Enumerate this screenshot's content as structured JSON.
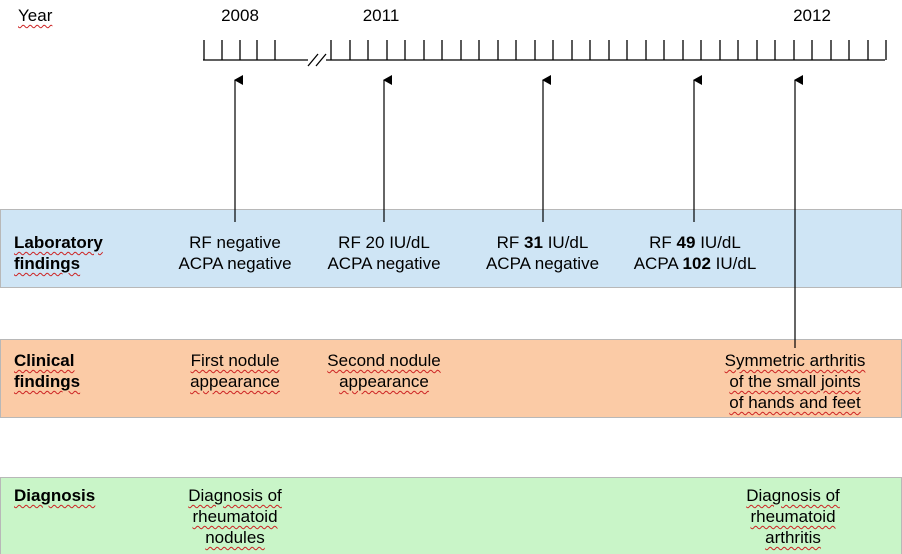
{
  "axis": {
    "heading": "Year",
    "years": [
      "2008",
      "2011",
      "2012"
    ]
  },
  "rows": {
    "laboratory": {
      "label": [
        "Laboratory",
        "findings"
      ],
      "color": "#cfe5f5",
      "events": [
        {
          "line1": "RF negative",
          "line2": "ACPA negative"
        },
        {
          "line1": "RF 20 IU/dL",
          "line2": "ACPA negative"
        },
        {
          "line1_pre": "RF ",
          "line1_bold": "31",
          "line1_post": " IU/dL",
          "line2": "ACPA negative"
        },
        {
          "line1_pre": "RF ",
          "line1_bold": "49",
          "line1_post": " IU/dL",
          "line2_pre": "ACPA ",
          "line2_bold": "102",
          "line2_post": " IU/dL"
        }
      ]
    },
    "clinical": {
      "label": [
        "Clinical",
        "findings"
      ],
      "color": "#fbcba6",
      "events": [
        {
          "lines": [
            "First nodule",
            "appearance"
          ]
        },
        {
          "lines": [
            "Second nodule",
            "appearance"
          ]
        },
        {
          "lines": [
            "Symmetric arthritis",
            "of the small joints",
            "of hands and feet"
          ]
        }
      ]
    },
    "diagnosis": {
      "label": [
        "Diagnosis"
      ],
      "color": "#c9f5c8",
      "events": [
        {
          "lines": [
            "Diagnosis of",
            "rheumatoid",
            "nodules"
          ]
        },
        {
          "lines": [
            "Diagnosis of",
            "rheumatoid",
            "arthritis"
          ]
        }
      ]
    }
  }
}
